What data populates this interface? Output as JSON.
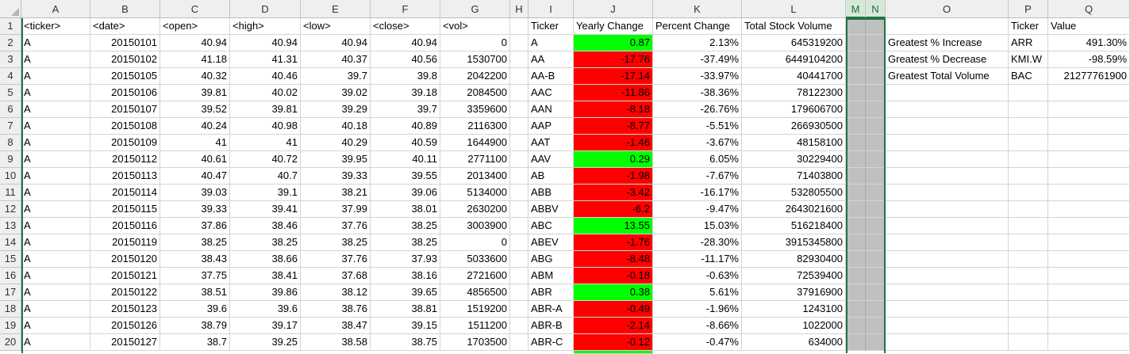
{
  "columns": [
    "A",
    "B",
    "C",
    "D",
    "E",
    "F",
    "G",
    "H",
    "I",
    "J",
    "K",
    "L",
    "M",
    "N",
    "O",
    "P",
    "Q"
  ],
  "selected_columns": [
    "M",
    "N"
  ],
  "row_numbers": [
    "1",
    "2",
    "3",
    "4",
    "5",
    "6",
    "7",
    "8",
    "9",
    "10",
    "11",
    "12",
    "13",
    "14",
    "15",
    "16",
    "17",
    "18",
    "19",
    "20"
  ],
  "headers": {
    "A": "<ticker>",
    "B": "<date>",
    "C": "<open>",
    "D": "<high>",
    "E": "<low>",
    "F": "<close>",
    "G": "<vol>",
    "I": "Ticker",
    "J": "Yearly Change",
    "K": "Percent Change",
    "L": "Total Stock Volume",
    "P": "Ticker",
    "Q": "Value"
  },
  "raw_rows": [
    [
      "A",
      "20150101",
      "40.94",
      "40.94",
      "40.94",
      "40.94",
      "0"
    ],
    [
      "A",
      "20150102",
      "41.18",
      "41.31",
      "40.37",
      "40.56",
      "1530700"
    ],
    [
      "A",
      "20150105",
      "40.32",
      "40.46",
      "39.7",
      "39.8",
      "2042200"
    ],
    [
      "A",
      "20150106",
      "39.81",
      "40.02",
      "39.02",
      "39.18",
      "2084500"
    ],
    [
      "A",
      "20150107",
      "39.52",
      "39.81",
      "39.29",
      "39.7",
      "3359600"
    ],
    [
      "A",
      "20150108",
      "40.24",
      "40.98",
      "40.18",
      "40.89",
      "2116300"
    ],
    [
      "A",
      "20150109",
      "41",
      "41",
      "40.29",
      "40.59",
      "1644900"
    ],
    [
      "A",
      "20150112",
      "40.61",
      "40.72",
      "39.95",
      "40.11",
      "2771100"
    ],
    [
      "A",
      "20150113",
      "40.47",
      "40.7",
      "39.33",
      "39.55",
      "2013400"
    ],
    [
      "A",
      "20150114",
      "39.03",
      "39.1",
      "38.21",
      "39.06",
      "5134000"
    ],
    [
      "A",
      "20150115",
      "39.33",
      "39.41",
      "37.99",
      "38.01",
      "2630200"
    ],
    [
      "A",
      "20150116",
      "37.86",
      "38.46",
      "37.76",
      "38.25",
      "3003900"
    ],
    [
      "A",
      "20150119",
      "38.25",
      "38.25",
      "38.25",
      "38.25",
      "0"
    ],
    [
      "A",
      "20150120",
      "38.43",
      "38.66",
      "37.76",
      "37.93",
      "5033600"
    ],
    [
      "A",
      "20150121",
      "37.75",
      "38.41",
      "37.68",
      "38.16",
      "2721600"
    ],
    [
      "A",
      "20150122",
      "38.51",
      "39.86",
      "38.12",
      "39.65",
      "4856500"
    ],
    [
      "A",
      "20150123",
      "39.6",
      "39.6",
      "38.76",
      "38.81",
      "1519200"
    ],
    [
      "A",
      "20150126",
      "38.79",
      "39.17",
      "38.47",
      "39.15",
      "1511200"
    ],
    [
      "A",
      "20150127",
      "38.7",
      "39.25",
      "38.58",
      "38.75",
      "1703500"
    ]
  ],
  "summary_rows": [
    {
      "ticker": "A",
      "change": "0.87",
      "pct": "2.13%",
      "volume": "645319200",
      "color": "green"
    },
    {
      "ticker": "AA",
      "change": "-17.76",
      "pct": "-37.49%",
      "volume": "6449104200",
      "color": "red"
    },
    {
      "ticker": "AA-B",
      "change": "-17.14",
      "pct": "-33.97%",
      "volume": "40441700",
      "color": "red"
    },
    {
      "ticker": "AAC",
      "change": "-11.86",
      "pct": "-38.36%",
      "volume": "78122300",
      "color": "red"
    },
    {
      "ticker": "AAN",
      "change": "-8.18",
      "pct": "-26.76%",
      "volume": "179606700",
      "color": "red"
    },
    {
      "ticker": "AAP",
      "change": "-8.77",
      "pct": "-5.51%",
      "volume": "266930500",
      "color": "red"
    },
    {
      "ticker": "AAT",
      "change": "-1.46",
      "pct": "-3.67%",
      "volume": "48158100",
      "color": "red"
    },
    {
      "ticker": "AAV",
      "change": "0.29",
      "pct": "6.05%",
      "volume": "30229400",
      "color": "green"
    },
    {
      "ticker": "AB",
      "change": "-1.98",
      "pct": "-7.67%",
      "volume": "71403800",
      "color": "red"
    },
    {
      "ticker": "ABB",
      "change": "-3.42",
      "pct": "-16.17%",
      "volume": "532805500",
      "color": "red"
    },
    {
      "ticker": "ABBV",
      "change": "-6.2",
      "pct": "-9.47%",
      "volume": "2643021600",
      "color": "red"
    },
    {
      "ticker": "ABC",
      "change": "13.55",
      "pct": "15.03%",
      "volume": "516218400",
      "color": "green"
    },
    {
      "ticker": "ABEV",
      "change": "-1.76",
      "pct": "-28.30%",
      "volume": "3915345800",
      "color": "red"
    },
    {
      "ticker": "ABG",
      "change": "-8.48",
      "pct": "-11.17%",
      "volume": "82930400",
      "color": "red"
    },
    {
      "ticker": "ABM",
      "change": "-0.18",
      "pct": "-0.63%",
      "volume": "72539400",
      "color": "red"
    },
    {
      "ticker": "ABR",
      "change": "0.38",
      "pct": "5.61%",
      "volume": "37916900",
      "color": "green"
    },
    {
      "ticker": "ABR-A",
      "change": "-0.49",
      "pct": "-1.96%",
      "volume": "1243100",
      "color": "red"
    },
    {
      "ticker": "ABR-B",
      "change": "-2.14",
      "pct": "-8.66%",
      "volume": "1022000",
      "color": "red"
    },
    {
      "ticker": "ABR-C",
      "change": "-0.12",
      "pct": "-0.47%",
      "volume": "634000",
      "color": "red"
    }
  ],
  "greatest": [
    {
      "label": "Greatest % Increase",
      "ticker": "ARR",
      "value": "491.30%"
    },
    {
      "label": "Greatest % Decrease",
      "ticker": "KMI.W",
      "value": "-98.59%"
    },
    {
      "label": "Greatest Total Volume",
      "ticker": "BAC",
      "value": "21277761900"
    }
  ],
  "colors": {
    "positive": "#00ff00",
    "negative": "#ff0000",
    "selection": "#217346",
    "selected_fill": "#c0c0c0"
  }
}
